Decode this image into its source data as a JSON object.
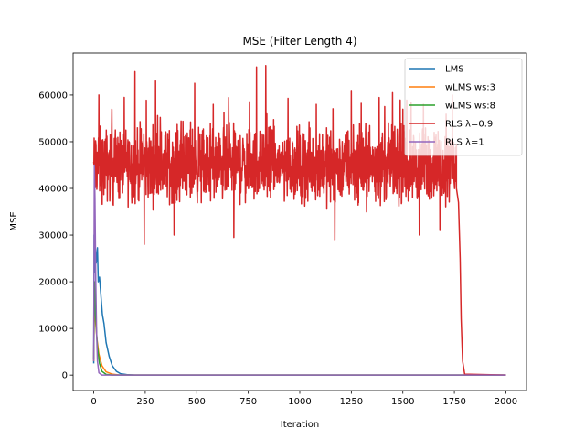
{
  "chart_data": {
    "type": "line",
    "title": "MSE (Filter Length 4)",
    "xlabel": "Iteration",
    "ylabel": "MSE",
    "xlim": [
      -100,
      2100
    ],
    "ylim": [
      -3300,
      69000
    ],
    "xticks": [
      0,
      250,
      500,
      750,
      1000,
      1250,
      1500,
      1750,
      2000
    ],
    "yticks": [
      0,
      10000,
      20000,
      30000,
      40000,
      50000,
      60000
    ],
    "grid": false,
    "legend_position": "top-right",
    "series": [
      {
        "name": "LMS",
        "color": "#1f77b4",
        "points": [
          [
            0,
            2500
          ],
          [
            2,
            30000
          ],
          [
            5,
            22000
          ],
          [
            8,
            27000
          ],
          [
            12,
            24000
          ],
          [
            18,
            27300
          ],
          [
            22,
            20000
          ],
          [
            28,
            21000
          ],
          [
            35,
            17000
          ],
          [
            42,
            13000
          ],
          [
            50,
            11000
          ],
          [
            60,
            7000
          ],
          [
            75,
            4000
          ],
          [
            90,
            2000
          ],
          [
            110,
            800
          ],
          [
            130,
            300
          ],
          [
            160,
            100
          ],
          [
            200,
            0
          ],
          [
            2000,
            0
          ]
        ]
      },
      {
        "name": "wLMS ws:3",
        "color": "#ff7f0e",
        "points": [
          [
            0,
            3000
          ],
          [
            3,
            16000
          ],
          [
            8,
            12000
          ],
          [
            15,
            8000
          ],
          [
            25,
            4500
          ],
          [
            40,
            2000
          ],
          [
            60,
            700
          ],
          [
            90,
            200
          ],
          [
            130,
            0
          ],
          [
            2000,
            0
          ]
        ]
      },
      {
        "name": "wLMS ws:8",
        "color": "#2ca02c",
        "points": [
          [
            0,
            3500
          ],
          [
            4,
            20000
          ],
          [
            10,
            12000
          ],
          [
            18,
            6000
          ],
          [
            28,
            2500
          ],
          [
            40,
            800
          ],
          [
            60,
            150
          ],
          [
            90,
            0
          ],
          [
            2000,
            0
          ]
        ]
      },
      {
        "name": "RLS λ=0.9",
        "color": "#d62728",
        "noise": {
          "x_start": 0,
          "x_end": 1760,
          "mean": 45000,
          "spread": 7000,
          "spikes": [
            [
              25,
              60000
            ],
            [
              200,
              65000
            ],
            [
              300,
              63000
            ],
            [
              490,
              62500
            ],
            [
              580,
              58000
            ],
            [
              790,
              66000
            ],
            [
              835,
              66300
            ],
            [
              1080,
              58000
            ],
            [
              1250,
              61000
            ],
            [
              1450,
              60500
            ],
            [
              1600,
              58000
            ],
            [
              1740,
              60000
            ]
          ],
          "dips": [
            [
              245,
              28000
            ],
            [
              390,
              30000
            ],
            [
              680,
              29500
            ],
            [
              1170,
              29000
            ],
            [
              1580,
              30000
            ],
            [
              1680,
              31000
            ]
          ]
        },
        "decay": [
          [
            1760,
            40000
          ],
          [
            1770,
            37000
          ],
          [
            1778,
            25000
          ],
          [
            1783,
            12000
          ],
          [
            1790,
            3000
          ],
          [
            1800,
            200
          ],
          [
            2000,
            0
          ]
        ]
      },
      {
        "name": "RLS λ=1",
        "color": "#9467bd",
        "points": [
          [
            0,
            3000
          ],
          [
            3,
            45000
          ],
          [
            6,
            38000
          ],
          [
            10,
            20000
          ],
          [
            14,
            9000
          ],
          [
            18,
            3000
          ],
          [
            25,
            500
          ],
          [
            40,
            0
          ],
          [
            2000,
            0
          ]
        ]
      }
    ]
  }
}
